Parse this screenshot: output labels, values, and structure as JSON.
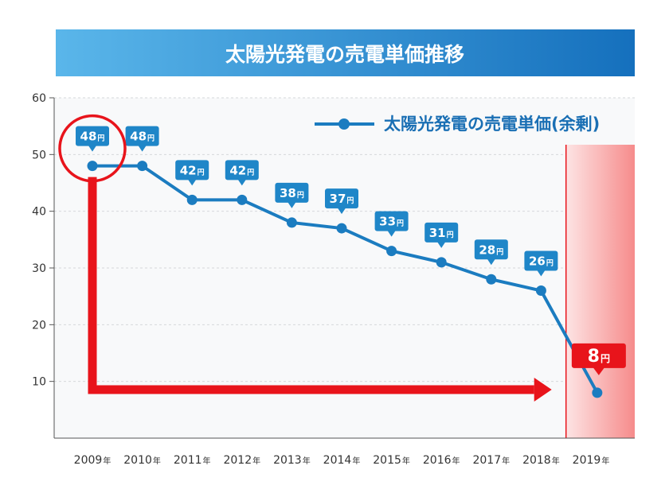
{
  "chart_data": {
    "type": "line",
    "title": "太陽光発電の売電単価推移",
    "categories": [
      "2009年",
      "2010年",
      "2011年",
      "2012年",
      "2013年",
      "2014年",
      "2015年",
      "2016年",
      "2017年",
      "2018年",
      "2019年"
    ],
    "series": [
      {
        "name": "太陽光発電の売電単価(余剰)",
        "values": [
          48,
          48,
          42,
          42,
          38,
          37,
          33,
          31,
          28,
          26,
          8
        ],
        "color": "#1b7cc0"
      }
    ],
    "value_unit": "円",
    "ylim": [
      0,
      60
    ],
    "yticks": [
      10,
      20,
      30,
      40,
      50,
      60
    ],
    "grid": true,
    "legend_position": "top-right",
    "data_labels": true,
    "label_box_color": "#1f86c8",
    "title_banner_colors": [
      "#5ab6ea",
      "#1570bd"
    ],
    "highlight": {
      "circled_category": "2009年",
      "shaded_category": "2019年",
      "arrow_from": "2009年",
      "arrow_to": "2019年",
      "color": "#e8141b"
    }
  }
}
